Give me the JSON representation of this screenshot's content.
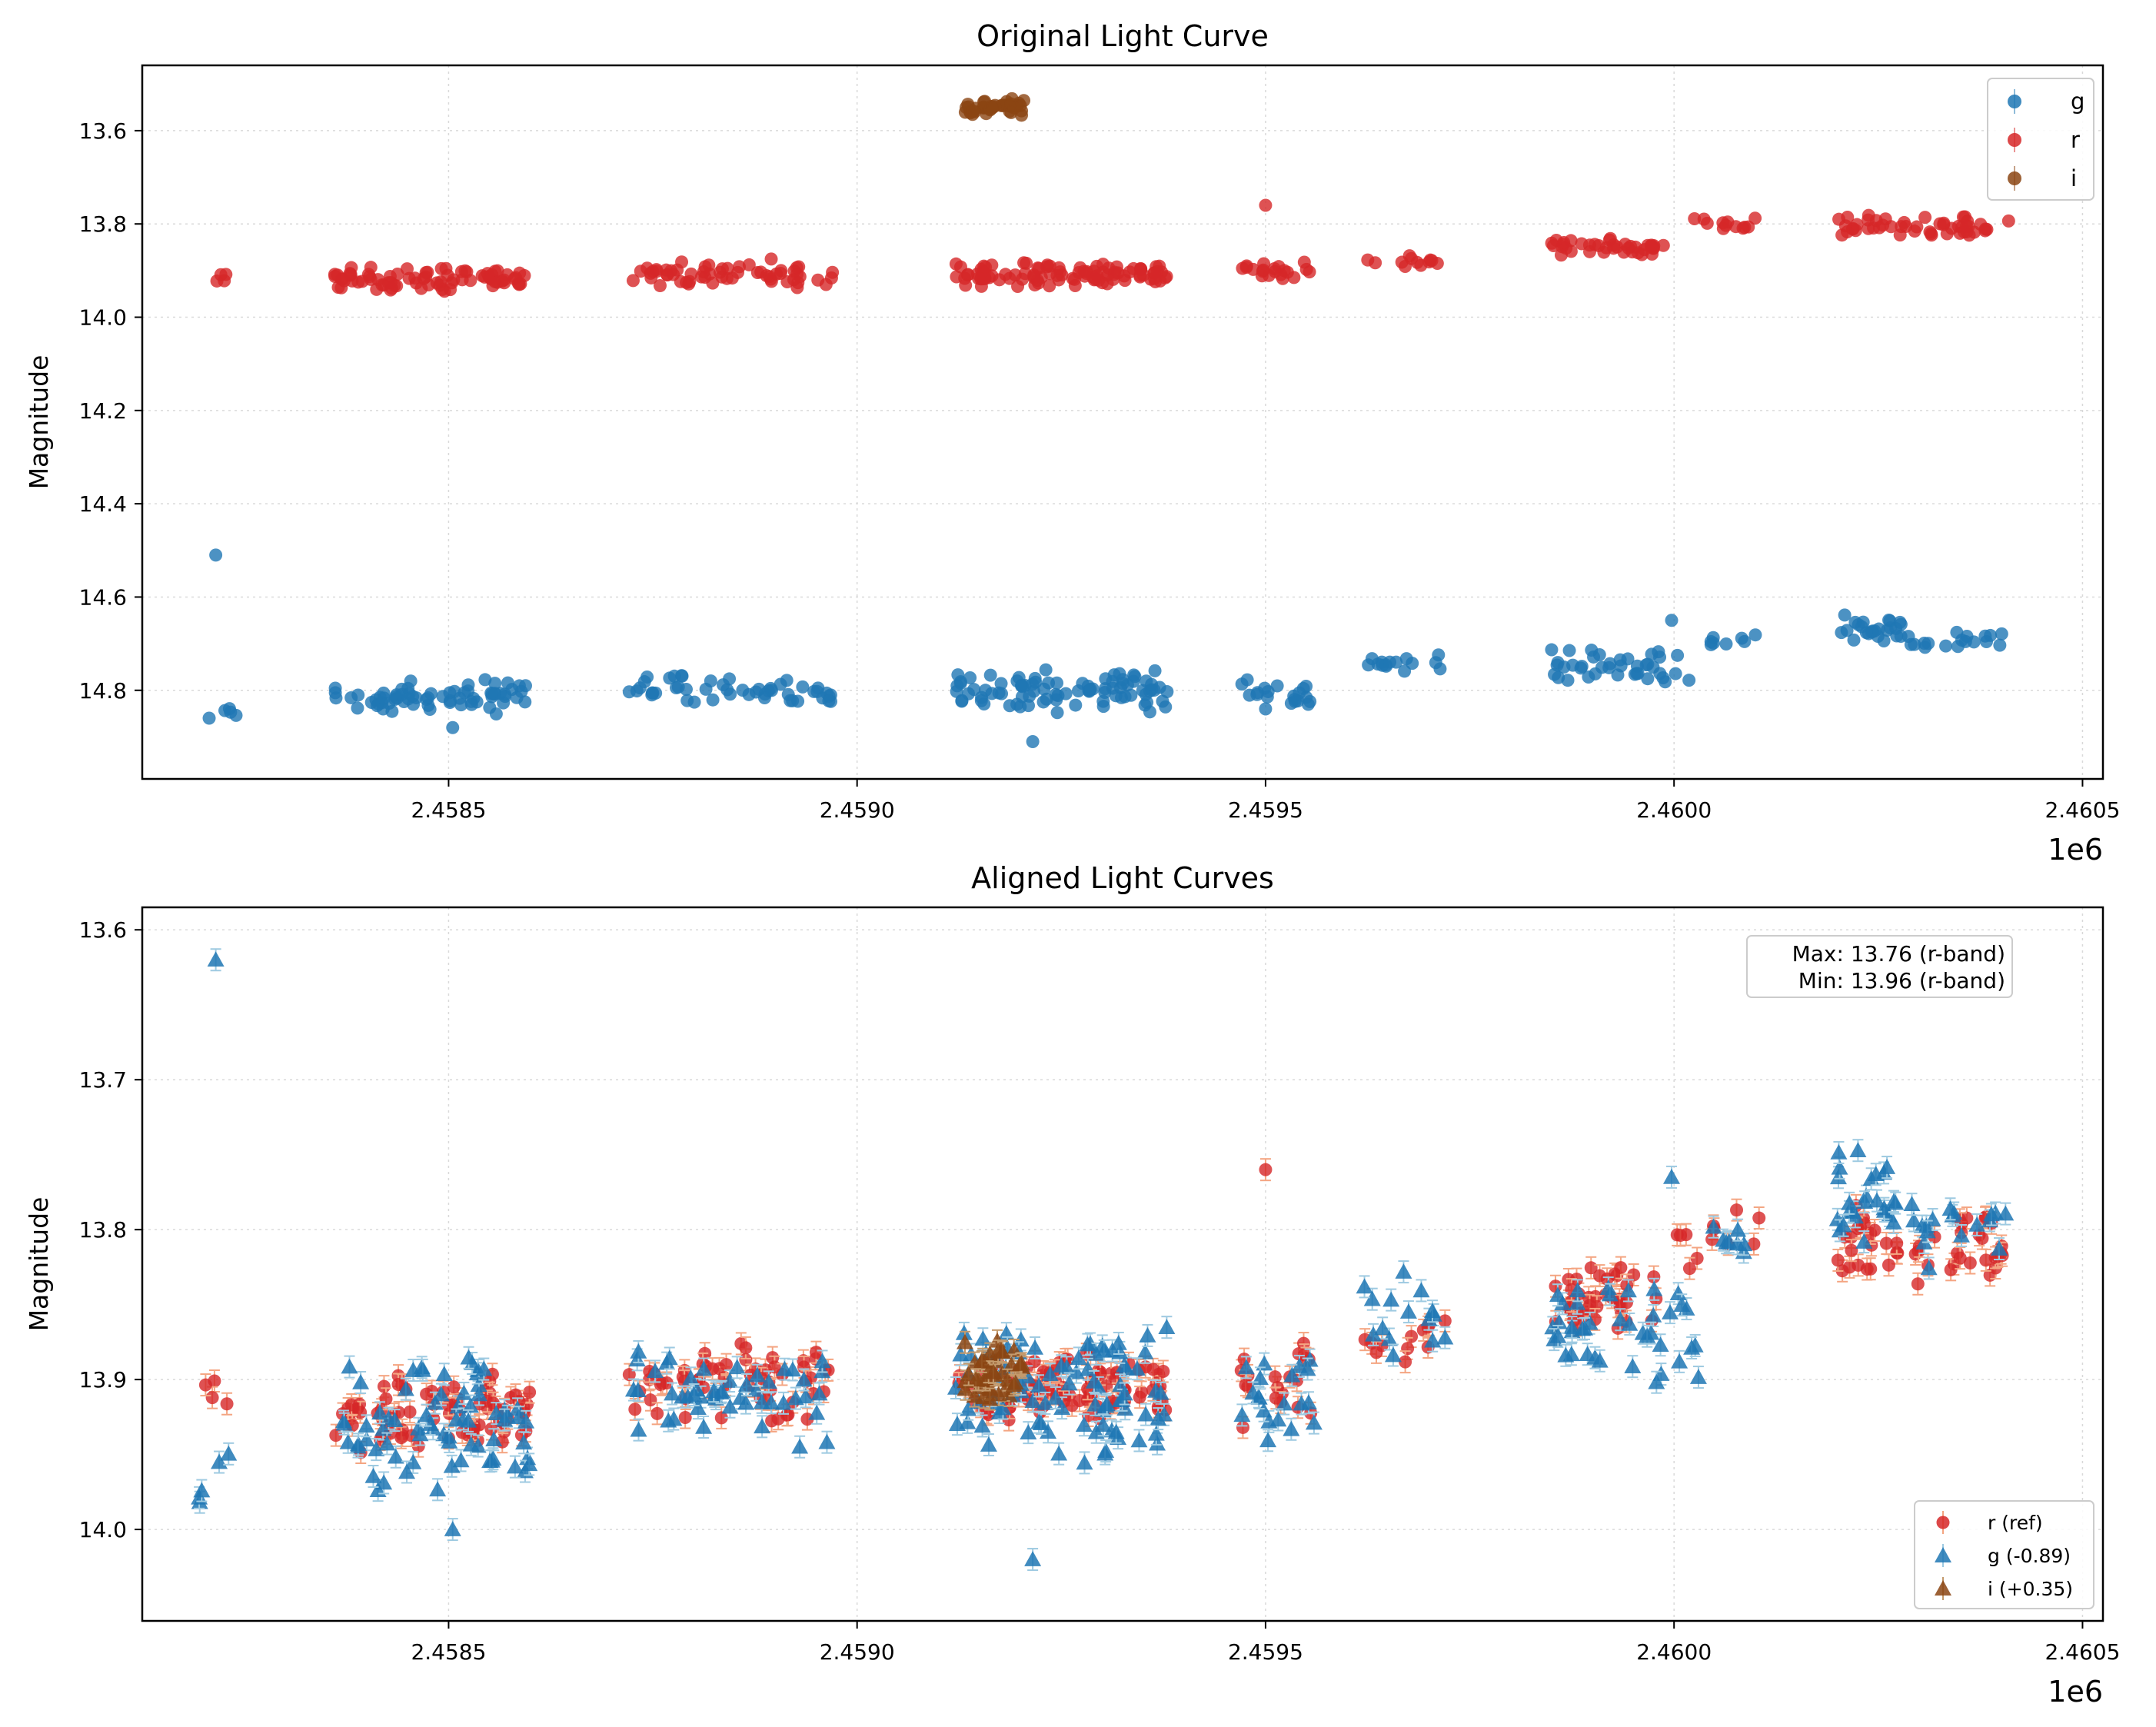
{
  "chart_data": [
    {
      "type": "scatter",
      "title": "Original Light Curve",
      "xlabel": "",
      "ylabel": "Magnitude",
      "x_offset_label": "1e6",
      "xlim": [
        2458125,
        2460525
      ],
      "ylim": [
        14.99,
        13.46
      ],
      "y_inverted": true,
      "grid": true,
      "xticks": [
        2458500,
        2459000,
        2459500,
        2460000,
        2460500
      ],
      "xtick_labels": [
        "2.4585",
        "2.4590",
        "2.4595",
        "2.4600",
        "2.4605"
      ],
      "yticks": [
        13.6,
        13.8,
        14.0,
        14.2,
        14.4,
        14.6,
        14.8
      ],
      "ytick_labels": [
        "13.6",
        "13.8",
        "14.0",
        "14.2",
        "14.4",
        "14.6",
        "14.8"
      ],
      "legend": {
        "position": "top-right",
        "entries": [
          "g",
          "r",
          "i"
        ]
      },
      "series": [
        {
          "name": "g",
          "color": "#1f77b4",
          "marker": "circle",
          "clusters": [
            {
              "x": [
                2458200,
                2458240
              ],
              "y": [
                14.82,
                14.87
              ],
              "n": 5
            },
            {
              "x": [
                2458360,
                2458600
              ],
              "y": [
                14.77,
                14.86
              ],
              "n": 70
            },
            {
              "x": [
                2458720,
                2458970
              ],
              "y": [
                14.76,
                14.84
              ],
              "n": 50
            },
            {
              "x": [
                2459120,
                2459380
              ],
              "y": [
                14.75,
                14.85
              ],
              "n": 90
            },
            {
              "x": [
                2459470,
                2459560
              ],
              "y": [
                14.77,
                14.84
              ],
              "n": 20
            },
            {
              "x": [
                2459620,
                2459720
              ],
              "y": [
                14.71,
                14.79
              ],
              "n": 15
            },
            {
              "x": [
                2459850,
                2460030
              ],
              "y": [
                14.71,
                14.79
              ],
              "n": 40
            },
            {
              "x": [
                2460040,
                2460110
              ],
              "y": [
                14.68,
                14.72
              ],
              "n": 8
            },
            {
              "x": [
                2460200,
                2460280
              ],
              "y": [
                14.63,
                14.7
              ],
              "n": 25
            },
            {
              "x": [
                2460280,
                2460410
              ],
              "y": [
                14.67,
                14.72
              ],
              "n": 18
            }
          ],
          "points": [
            {
              "x": 2458215,
              "y": 14.51
            },
            {
              "x": 2459215,
              "y": 14.91
            },
            {
              "x": 2459500,
              "y": 14.84
            },
            {
              "x": 2458505,
              "y": 14.88
            },
            {
              "x": 2459997,
              "y": 14.65
            }
          ]
        },
        {
          "name": "r",
          "color": "#d62728",
          "marker": "circle",
          "clusters": [
            {
              "x": [
                2458200,
                2458230
              ],
              "y": [
                13.9,
                13.93
              ],
              "n": 4
            },
            {
              "x": [
                2458360,
                2458600
              ],
              "y": [
                13.89,
                13.95
              ],
              "n": 80
            },
            {
              "x": [
                2458720,
                2458970
              ],
              "y": [
                13.87,
                13.94
              ],
              "n": 60
            },
            {
              "x": [
                2459120,
                2459380
              ],
              "y": [
                13.88,
                13.94
              ],
              "n": 100
            },
            {
              "x": [
                2459470,
                2459560
              ],
              "y": [
                13.88,
                13.92
              ],
              "n": 20
            },
            {
              "x": [
                2459620,
                2459720
              ],
              "y": [
                13.86,
                13.9
              ],
              "n": 12
            },
            {
              "x": [
                2459850,
                2459990
              ],
              "y": [
                13.83,
                13.87
              ],
              "n": 40
            },
            {
              "x": [
                2460000,
                2460110
              ],
              "y": [
                13.78,
                13.83
              ],
              "n": 12
            },
            {
              "x": [
                2460200,
                2460410
              ],
              "y": [
                13.78,
                13.83
              ],
              "n": 50
            }
          ],
          "points": [
            {
              "x": 2459500,
              "y": 13.76
            }
          ]
        },
        {
          "name": "i",
          "color": "#8b4513",
          "marker": "circle",
          "clusters": [
            {
              "x": [
                2459130,
                2459205
              ],
              "y": [
                13.53,
                13.57
              ],
              "n": 40
            }
          ],
          "points": []
        }
      ]
    },
    {
      "type": "scatter",
      "title": "Aligned Light Curves",
      "xlabel": "",
      "ylabel": "Magnitude",
      "x_offset_label": "1e6",
      "xlim": [
        2458125,
        2460525
      ],
      "ylim": [
        14.061,
        13.585
      ],
      "y_inverted": true,
      "grid": true,
      "xticks": [
        2458500,
        2459000,
        2459500,
        2460000,
        2460500
      ],
      "xtick_labels": [
        "2.4585",
        "2.4590",
        "2.4595",
        "2.4600",
        "2.4605"
      ],
      "yticks": [
        13.6,
        13.7,
        13.8,
        13.9,
        14.0
      ],
      "ytick_labels": [
        "13.6",
        "13.7",
        "13.8",
        "13.9",
        "14.0"
      ],
      "annotation": [
        "Max: 13.76 (r-band)",
        "Min: 13.96 (r-band)"
      ],
      "legend": {
        "position": "bottom-right",
        "entries": [
          "r (ref)",
          "g (-0.89)",
          "i (+0.35)"
        ]
      },
      "series": [
        {
          "name": "r (ref)",
          "color": "#d62728",
          "marker": "circle",
          "errorbar_color": "#f4a582",
          "clusters": [
            {
              "x": [
                2458200,
                2458230
              ],
              "y": [
                13.89,
                13.93
              ],
              "n": 4
            },
            {
              "x": [
                2458360,
                2458600
              ],
              "y": [
                13.89,
                13.95
              ],
              "n": 80
            },
            {
              "x": [
                2458720,
                2458970
              ],
              "y": [
                13.87,
                13.93
              ],
              "n": 60
            },
            {
              "x": [
                2459120,
                2459380
              ],
              "y": [
                13.88,
                13.93
              ],
              "n": 100
            },
            {
              "x": [
                2459470,
                2459560
              ],
              "y": [
                13.87,
                13.94
              ],
              "n": 20
            },
            {
              "x": [
                2459620,
                2459720
              ],
              "y": [
                13.85,
                13.9
              ],
              "n": 12
            },
            {
              "x": [
                2459850,
                2459990
              ],
              "y": [
                13.82,
                13.87
              ],
              "n": 40
            },
            {
              "x": [
                2460000,
                2460110
              ],
              "y": [
                13.78,
                13.83
              ],
              "n": 12
            },
            {
              "x": [
                2460200,
                2460410
              ],
              "y": [
                13.78,
                13.84
              ],
              "n": 50
            }
          ],
          "points": [
            {
              "x": 2459500,
              "y": 13.76
            }
          ]
        },
        {
          "name": "g (-0.89)",
          "color": "#1f77b4",
          "marker": "triangle",
          "errorbar_color": "#9ecae1",
          "clusters": [
            {
              "x": [
                2458190,
                2458240
              ],
              "y": [
                13.94,
                13.99
              ],
              "n": 5
            },
            {
              "x": [
                2458360,
                2458600
              ],
              "y": [
                13.88,
                13.98
              ],
              "n": 70
            },
            {
              "x": [
                2458720,
                2458970
              ],
              "y": [
                13.87,
                13.95
              ],
              "n": 50
            },
            {
              "x": [
                2459120,
                2459380
              ],
              "y": [
                13.86,
                13.96
              ],
              "n": 90
            },
            {
              "x": [
                2459470,
                2459560
              ],
              "y": [
                13.88,
                13.95
              ],
              "n": 20
            },
            {
              "x": [
                2459620,
                2459720
              ],
              "y": [
                13.82,
                13.9
              ],
              "n": 15
            },
            {
              "x": [
                2459850,
                2460030
              ],
              "y": [
                13.82,
                13.91
              ],
              "n": 40
            },
            {
              "x": [
                2460040,
                2460110
              ],
              "y": [
                13.79,
                13.83
              ],
              "n": 8
            },
            {
              "x": [
                2460200,
                2460280
              ],
              "y": [
                13.74,
                13.82
              ],
              "n": 25
            },
            {
              "x": [
                2460280,
                2460410
              ],
              "y": [
                13.77,
                13.83
              ],
              "n": 18
            }
          ],
          "points": [
            {
              "x": 2458215,
              "y": 13.62
            },
            {
              "x": 2459215,
              "y": 14.02
            },
            {
              "x": 2458505,
              "y": 14.0
            },
            {
              "x": 2459997,
              "y": 13.765
            }
          ]
        },
        {
          "name": "i (+0.35)",
          "color": "#8b4513",
          "marker": "triangle",
          "errorbar_color": "#c49a6c",
          "clusters": [
            {
              "x": [
                2459130,
                2459205
              ],
              "y": [
                13.87,
                13.92
              ],
              "n": 40
            }
          ],
          "points": []
        }
      ]
    }
  ]
}
